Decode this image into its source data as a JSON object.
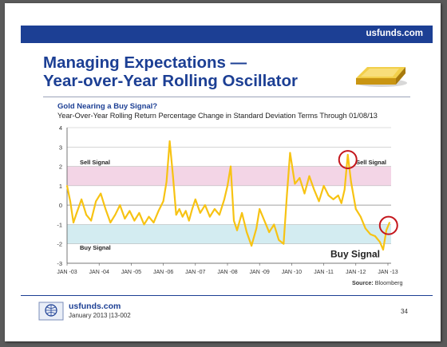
{
  "header": {
    "site": "usfunds.com",
    "bar_color": "#1c3f94"
  },
  "title": {
    "line1": "Managing Expectations —",
    "line2": "Year-over-Year Rolling Oscillator"
  },
  "decor": {
    "gold_bar": "gold-bar-icon",
    "logo": "us-global-logo-icon"
  },
  "chart_title": "Gold Nearing a Buy Signal?",
  "chart_subtitle": "Year-Over-Year Rolling Return Percentage Change in Standard Deviation Terms Through 01/08/13",
  "source": {
    "label": "Source:",
    "value": "Bloomberg"
  },
  "footer": {
    "url": "usfunds.com",
    "date_code": "January 2013 |13-002",
    "page": "34"
  },
  "chart_data": {
    "type": "line",
    "title": "Gold Nearing a Buy Signal?",
    "xlabel": "",
    "ylabel": "",
    "x_ticks": [
      "JAN -03",
      "JAN -04",
      "JAN -05",
      "JAN -06",
      "JAN -07",
      "JAN -08",
      "JAN -09",
      "JAN -10",
      "JAN -11",
      "JAN -12",
      "JAN -13"
    ],
    "ylim": [
      -3,
      4
    ],
    "y_ticks": [
      "4",
      "3",
      "2",
      "1",
      "0",
      "-1",
      "-2",
      "-3"
    ],
    "bands": [
      {
        "name": "Sell Signal",
        "from": 1,
        "to": 2,
        "color": "#f3d5e6"
      },
      {
        "name": "Buy Signal",
        "from": -2,
        "to": -1,
        "color": "#d3ecf1"
      }
    ],
    "annotations": {
      "sell_left": "Sell Signal",
      "sell_right": "Sell Signal",
      "buy_left": "Buy Signal",
      "buy_right": "Buy Signal"
    },
    "line_color": "#f7c313",
    "circle_color": "#c4161c",
    "series": [
      {
        "x": [
          2003.0,
          2003.1,
          2003.2,
          2003.3,
          2003.45,
          2003.6,
          2003.75,
          2003.9,
          2004.05,
          2004.2,
          2004.35,
          2004.5,
          2004.65,
          2004.8,
          2004.95,
          2005.1,
          2005.25,
          2005.4,
          2005.55,
          2005.7,
          2005.85,
          2006.0,
          2006.1,
          2006.2,
          2006.3,
          2006.4,
          2006.5,
          2006.6,
          2006.7,
          2006.8,
          2006.9,
          2007.0,
          2007.15,
          2007.3,
          2007.45,
          2007.6,
          2007.75,
          2007.9,
          2008.0,
          2008.1,
          2008.2,
          2008.3,
          2008.45,
          2008.6,
          2008.75,
          2008.9,
          2009.0,
          2009.15,
          2009.3,
          2009.45,
          2009.6,
          2009.75,
          2009.85,
          2009.95,
          2010.1,
          2010.25,
          2010.4,
          2010.55,
          2010.7,
          2010.85,
          2011.0,
          2011.15,
          2011.3,
          2011.45,
          2011.55,
          2011.65,
          2011.75,
          2011.85,
          2012.0,
          2012.15,
          2012.3,
          2012.45,
          2012.6,
          2012.75,
          2012.85,
          2012.95,
          2013.05
        ],
        "y": [
          1.0,
          0.2,
          -0.9,
          -0.4,
          0.3,
          -0.5,
          -0.8,
          0.2,
          0.6,
          -0.2,
          -0.9,
          -0.5,
          0.0,
          -0.7,
          -0.3,
          -0.8,
          -0.4,
          -1.0,
          -0.6,
          -0.9,
          -0.3,
          0.2,
          1.2,
          3.3,
          1.5,
          -0.5,
          -0.2,
          -0.6,
          -0.3,
          -0.8,
          -0.2,
          0.3,
          -0.4,
          0.0,
          -0.6,
          -0.2,
          -0.5,
          0.3,
          1.0,
          2.0,
          -0.8,
          -1.3,
          -0.4,
          -1.4,
          -2.1,
          -1.2,
          -0.2,
          -0.8,
          -1.4,
          -1.0,
          -1.8,
          -2.0,
          0.5,
          2.7,
          1.1,
          1.4,
          0.6,
          1.5,
          0.8,
          0.2,
          1.0,
          0.5,
          0.3,
          0.5,
          0.1,
          0.8,
          2.6,
          1.2,
          -0.2,
          -0.6,
          -1.2,
          -1.5,
          -1.6,
          -1.9,
          -2.3,
          -1.3,
          -0.9
        ]
      }
    ]
  }
}
